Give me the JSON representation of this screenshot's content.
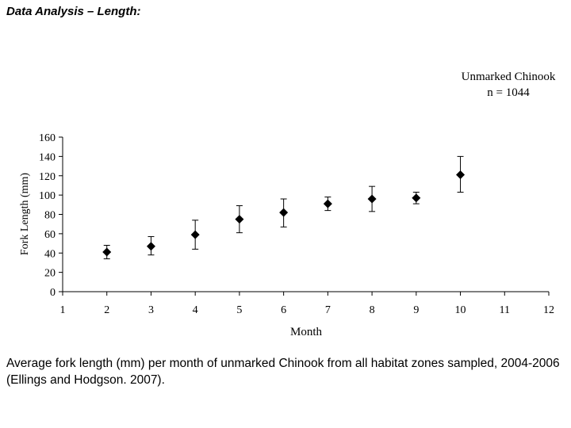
{
  "slide": {
    "heading": "Data Analysis – Length:",
    "caption": "Average fork length (mm) per month of unmarked Chinook from all habitat zones sampled, 2004-2006 (Ellings and Hodgson. 2007)."
  },
  "chart_data": {
    "type": "scatter",
    "marker": "diamond",
    "error_bars": true,
    "annotation": [
      "Unmarked Chinook",
      "n = 1044"
    ],
    "xlabel": "Month",
    "ylabel": "Fork Length (mm)",
    "xlim": [
      1,
      12
    ],
    "ylim": [
      0,
      160
    ],
    "xticks": [
      1,
      2,
      3,
      4,
      5,
      6,
      7,
      8,
      9,
      10,
      11,
      12
    ],
    "yticks": [
      0,
      20,
      40,
      60,
      80,
      100,
      120,
      140,
      160
    ],
    "grid": false,
    "points": [
      {
        "x": 2,
        "y": 41,
        "lo": 34,
        "hi": 48
      },
      {
        "x": 3,
        "y": 47,
        "lo": 38,
        "hi": 57
      },
      {
        "x": 4,
        "y": 59,
        "lo": 44,
        "hi": 74
      },
      {
        "x": 5,
        "y": 75,
        "lo": 61,
        "hi": 89
      },
      {
        "x": 6,
        "y": 82,
        "lo": 67,
        "hi": 96
      },
      {
        "x": 7,
        "y": 91,
        "lo": 84,
        "hi": 98
      },
      {
        "x": 8,
        "y": 96,
        "lo": 83,
        "hi": 109
      },
      {
        "x": 9,
        "y": 97,
        "lo": 91,
        "hi": 103
      },
      {
        "x": 10,
        "y": 121,
        "lo": 103,
        "hi": 140
      }
    ]
  }
}
